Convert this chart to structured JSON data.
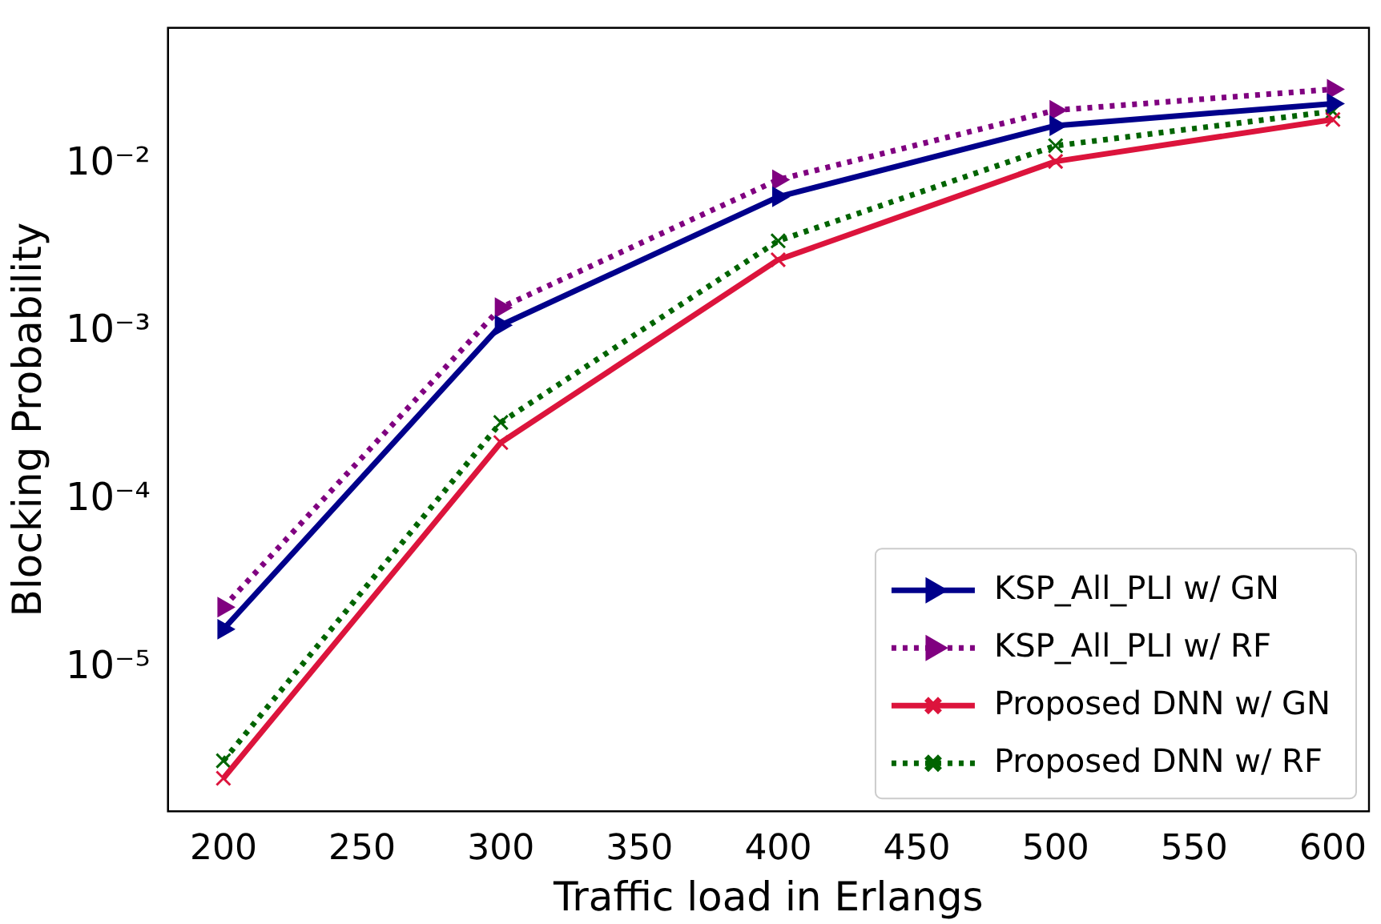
{
  "chart_data": {
    "type": "line",
    "xlabel": "Traffic load in Erlangs",
    "ylabel": "Blocking Probability",
    "x": [
      200,
      300,
      400,
      500,
      600
    ],
    "series": [
      {
        "name": "KSP_All_PLI w/ GN",
        "color": "#00008b",
        "values": [
          1.7e-05,
          0.0011,
          0.0064,
          0.017,
          0.023
        ],
        "marker": "triangle",
        "line_style": "solid"
      },
      {
        "name": "KSP_All_PLI w/ RF",
        "color": "#800080",
        "values": [
          2.3e-05,
          0.0014,
          0.0081,
          0.021,
          0.028
        ],
        "marker": "triangle",
        "line_style": "dotted"
      },
      {
        "name": "Proposed DNN w/ GN",
        "color": "#dc143c",
        "values": [
          2.2e-06,
          0.00022,
          0.0027,
          0.0104,
          0.0185
        ],
        "marker": "cross",
        "line_style": "solid"
      },
      {
        "name": "Proposed DNN w/ RF",
        "color": "#006400",
        "values": [
          2.8e-06,
          0.00029,
          0.0035,
          0.0129,
          0.0207
        ],
        "marker": "cross",
        "line_style": "dotted"
      }
    ],
    "log": "y",
    "xlim": [
      180,
      613
    ],
    "ylim": [
      1.4e-06,
      0.065
    ],
    "xticks": [
      200,
      250,
      300,
      350,
      400,
      450,
      500,
      550,
      600
    ],
    "yticks": [
      {
        "value": 1e-05,
        "label": "10⁻⁵"
      },
      {
        "value": 0.0001,
        "label": "10⁻⁴"
      },
      {
        "value": 0.001,
        "label": "10⁻³"
      },
      {
        "value": 0.01,
        "label": "10⁻²"
      }
    ],
    "grid": false,
    "legend": "bottom right"
  }
}
